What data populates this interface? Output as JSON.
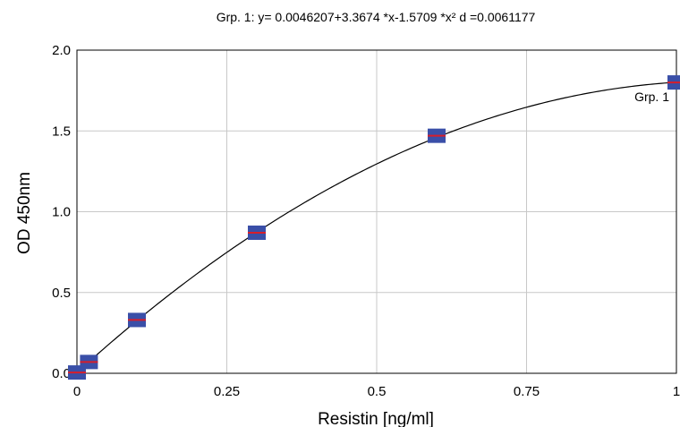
{
  "chart_data": {
    "type": "scatter",
    "title": "Grp. 1: y= 0.0046207+3.3674 *x-1.5709 *x²   d =0.0061177",
    "xlabel": "Resistin [ng/ml]",
    "ylabel": "OD 450nm",
    "xlim": [
      0,
      1
    ],
    "ylim": [
      0,
      2
    ],
    "x_ticks": [
      0,
      0.25,
      0.5,
      0.75,
      1
    ],
    "x_tick_labels": [
      "0",
      "0.25",
      "0.5",
      "0.75",
      "1"
    ],
    "y_ticks": [
      0,
      0.5,
      1,
      1.5,
      2
    ],
    "y_tick_labels": [
      "0.0",
      "0.5",
      "1.0",
      "1.5",
      "2.0"
    ],
    "grid": true,
    "series": [
      {
        "name": "Grp. 1",
        "x": [
          0,
          0.02,
          0.1,
          0.3,
          0.6,
          1
        ],
        "y": [
          0.005,
          0.07,
          0.33,
          0.87,
          1.47,
          1.8
        ]
      }
    ],
    "fit": {
      "model": "quadratic",
      "coefficients": [
        0.0046207,
        3.3674,
        -1.5709
      ]
    },
    "colors": {
      "marker": "#3a4fa8",
      "marker_center": "#d81e2a"
    }
  }
}
